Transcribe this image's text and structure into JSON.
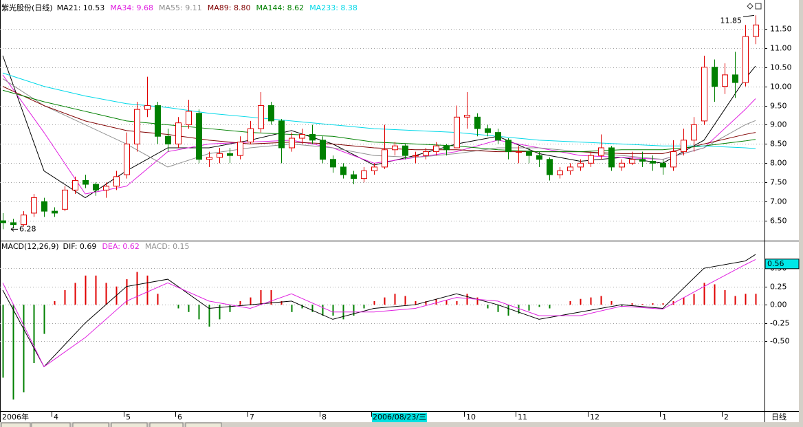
{
  "chart_data": [
    {
      "type": "candlestick",
      "title": "紫光股份(日线)",
      "categories": [
        "2006年",
        null,
        null,
        null,
        null,
        "4",
        null,
        null,
        null,
        null,
        null,
        null,
        "5",
        null,
        null,
        null,
        null,
        "6",
        null,
        null,
        null,
        null,
        null,
        null,
        "7",
        null,
        null,
        null,
        null,
        null,
        null,
        "8",
        null,
        null,
        null,
        null,
        "2006/08/23/三",
        null,
        null,
        null,
        null,
        null,
        null,
        null,
        null,
        "10",
        null,
        null,
        null,
        null,
        "11",
        null,
        null,
        null,
        null,
        null,
        null,
        "12",
        null,
        null,
        null,
        null,
        null,
        null,
        "1",
        null,
        null,
        null,
        null,
        null,
        "2",
        null,
        null,
        null
      ],
      "highlight_index": 36,
      "open": [
        6.5,
        6.45,
        6.4,
        6.7,
        7.0,
        6.75,
        6.8,
        7.3,
        7.55,
        7.45,
        7.3,
        7.4,
        7.7,
        8.5,
        9.4,
        9.5,
        8.7,
        8.5,
        9.0,
        9.3,
        8.1,
        8.15,
        8.25,
        8.2,
        8.55,
        8.9,
        9.5,
        9.1,
        8.4,
        8.65,
        8.75,
        8.6,
        8.1,
        7.9,
        7.7,
        7.6,
        7.8,
        7.9,
        8.35,
        8.45,
        8.2,
        8.2,
        8.3,
        8.45,
        8.4,
        9.2,
        9.2,
        8.9,
        8.8,
        8.6,
        8.3,
        8.3,
        8.2,
        8.1,
        7.7,
        7.8,
        7.9,
        8.0,
        8.2,
        8.4,
        7.9,
        8.0,
        8.1,
        8.05,
        8.0,
        7.9,
        8.3,
        8.6,
        9.1,
        10.5,
        10.0,
        10.3,
        10.1,
        11.3
      ],
      "high": [
        6.7,
        6.55,
        6.75,
        7.2,
        7.1,
        6.85,
        7.4,
        7.65,
        7.7,
        7.5,
        7.5,
        7.8,
        8.8,
        9.6,
        10.25,
        9.6,
        8.9,
        9.2,
        9.65,
        9.4,
        8.3,
        8.4,
        8.4,
        8.7,
        9.1,
        9.85,
        9.6,
        9.15,
        8.8,
        8.9,
        9.0,
        8.7,
        8.2,
        8.0,
        7.8,
        7.9,
        8.0,
        9.0,
        8.55,
        8.5,
        8.3,
        8.4,
        8.55,
        8.5,
        9.5,
        9.85,
        9.3,
        9.0,
        8.9,
        8.65,
        8.45,
        8.4,
        8.3,
        8.15,
        7.9,
        8.0,
        8.1,
        8.3,
        8.75,
        8.45,
        8.1,
        8.3,
        8.3,
        8.2,
        8.1,
        8.6,
        8.9,
        9.2,
        10.8,
        10.7,
        10.6,
        10.9,
        11.6,
        11.85
      ],
      "low": [
        6.28,
        6.3,
        6.35,
        6.6,
        6.6,
        6.6,
        6.75,
        7.2,
        7.35,
        7.15,
        7.1,
        7.3,
        7.6,
        8.3,
        9.2,
        8.5,
        8.3,
        8.4,
        8.9,
        8.0,
        7.9,
        8.0,
        8.0,
        8.1,
        8.5,
        8.8,
        9.0,
        8.0,
        8.3,
        8.5,
        8.5,
        8.0,
        7.75,
        7.6,
        7.45,
        7.5,
        7.7,
        7.85,
        8.2,
        8.1,
        8.0,
        8.1,
        8.2,
        8.2,
        8.4,
        8.9,
        8.7,
        8.7,
        8.5,
        8.1,
        8.0,
        8.0,
        7.9,
        7.55,
        7.6,
        7.7,
        7.8,
        7.9,
        8.1,
        7.8,
        7.8,
        7.95,
        7.9,
        7.8,
        7.7,
        7.8,
        8.2,
        8.3,
        9.0,
        9.6,
        9.8,
        9.7,
        10.0,
        11.1
      ],
      "close": [
        6.45,
        6.4,
        6.65,
        7.1,
        6.75,
        6.7,
        7.3,
        7.55,
        7.45,
        7.3,
        7.4,
        7.65,
        8.5,
        9.4,
        9.5,
        8.7,
        8.5,
        9.05,
        9.35,
        8.1,
        8.15,
        8.25,
        8.2,
        8.55,
        8.9,
        9.5,
        9.1,
        8.4,
        8.65,
        8.75,
        8.6,
        8.1,
        7.9,
        7.7,
        7.6,
        7.8,
        7.9,
        8.35,
        8.45,
        8.2,
        8.2,
        8.3,
        8.45,
        8.35,
        9.2,
        9.25,
        8.9,
        8.8,
        8.6,
        8.3,
        8.3,
        8.2,
        8.1,
        7.7,
        7.8,
        7.9,
        8.0,
        8.2,
        8.4,
        7.9,
        8.0,
        8.1,
        8.05,
        8.0,
        7.9,
        8.3,
        8.6,
        9.0,
        10.5,
        10.0,
        10.3,
        10.1,
        11.3,
        11.6
      ],
      "up_color": "#e00000",
      "down_color": "#008000",
      "series": [
        {
          "name": "MA21: 10.53",
          "color": "#000000",
          "x": [
            0,
            4,
            8,
            12,
            16,
            20,
            24,
            28,
            32,
            36,
            40,
            44,
            48,
            52,
            56,
            60,
            64,
            68,
            72,
            73
          ],
          "values": [
            10.8,
            7.8,
            7.1,
            7.8,
            8.4,
            8.4,
            8.6,
            8.85,
            8.5,
            7.95,
            8.2,
            8.5,
            8.7,
            8.25,
            8.05,
            8.15,
            8.0,
            8.6,
            10.2,
            10.53
          ]
        },
        {
          "name": "MA34: 9.68",
          "color": "#e020e0",
          "x": [
            0,
            4,
            8,
            12,
            16,
            20,
            24,
            28,
            32,
            36,
            40,
            44,
            48,
            52,
            56,
            60,
            64,
            68,
            72,
            73
          ],
          "values": [
            10.3,
            8.8,
            7.2,
            7.4,
            8.3,
            8.5,
            8.55,
            8.6,
            8.4,
            8.0,
            8.15,
            8.3,
            8.6,
            8.4,
            8.2,
            8.15,
            8.1,
            8.4,
            9.4,
            9.68
          ]
        },
        {
          "name": "MA55: 9.11",
          "color": "#909090",
          "x": [
            0,
            4,
            8,
            12,
            16,
            20,
            24,
            28,
            32,
            36,
            40,
            44,
            48,
            52,
            56,
            60,
            64,
            68,
            72,
            73
          ],
          "values": [
            10.2,
            9.5,
            9.0,
            8.5,
            7.9,
            8.25,
            8.4,
            8.5,
            8.4,
            8.2,
            8.15,
            8.25,
            8.4,
            8.4,
            8.3,
            8.2,
            8.1,
            8.4,
            9.0,
            9.11
          ]
        },
        {
          "name": "MA89: 8.80",
          "color": "#800000",
          "x": [
            0,
            4,
            8,
            12,
            16,
            20,
            24,
            28,
            32,
            36,
            40,
            44,
            48,
            52,
            56,
            60,
            64,
            68,
            72,
            73
          ],
          "values": [
            10.0,
            9.5,
            9.1,
            8.85,
            8.75,
            8.6,
            8.5,
            8.55,
            8.5,
            8.4,
            8.35,
            8.35,
            8.3,
            8.3,
            8.3,
            8.25,
            8.25,
            8.5,
            8.75,
            8.8
          ]
        },
        {
          "name": "MA144: 8.62",
          "color": "#008000",
          "x": [
            0,
            4,
            8,
            12,
            16,
            20,
            24,
            28,
            32,
            36,
            40,
            44,
            48,
            52,
            56,
            60,
            64,
            68,
            72,
            73
          ],
          "values": [
            9.9,
            9.6,
            9.35,
            9.1,
            9.0,
            8.9,
            8.8,
            8.75,
            8.7,
            8.55,
            8.5,
            8.45,
            8.35,
            8.3,
            8.3,
            8.35,
            8.35,
            8.45,
            8.58,
            8.62
          ]
        },
        {
          "name": "MA233: 8.38",
          "color": "#00d8e8",
          "x": [
            0,
            4,
            8,
            12,
            16,
            20,
            24,
            28,
            32,
            36,
            40,
            44,
            48,
            52,
            56,
            60,
            64,
            68,
            72,
            73
          ],
          "values": [
            10.35,
            10.0,
            9.75,
            9.55,
            9.45,
            9.3,
            9.2,
            9.1,
            9.0,
            8.9,
            8.85,
            8.8,
            8.7,
            8.6,
            8.55,
            8.5,
            8.45,
            8.45,
            8.4,
            8.38
          ]
        }
      ],
      "ylim": [
        6.0,
        12.25
      ],
      "yticks": [
        {
          "value": 6.5,
          "label": "6.50"
        },
        {
          "value": 7.0,
          "label": "7.00"
        },
        {
          "value": 7.5,
          "label": "7.50"
        },
        {
          "value": 8.0,
          "label": "8.00"
        },
        {
          "value": 8.5,
          "label": "8.50"
        },
        {
          "value": 9.0,
          "label": "9.00"
        },
        {
          "value": 9.5,
          "label": "9.50"
        },
        {
          "value": 10.0,
          "label": "10.00"
        },
        {
          "value": 10.5,
          "label": "10.50"
        },
        {
          "value": 11.0,
          "label": "11.00"
        },
        {
          "value": 11.5,
          "label": "11.50"
        }
      ],
      "grid": true,
      "high_label": 11.85,
      "low_label": 6.28,
      "period_label": "日线"
    },
    {
      "type": "macd",
      "title": "MACD(12,26,9)",
      "histogram": {
        "name": "MACD: 0.15",
        "name_color": "#909090",
        "up_color": "#e00000",
        "down_color": "#008000",
        "values": [
          -1.0,
          -1.3,
          -1.2,
          -0.8,
          -0.4,
          0.05,
          0.2,
          0.3,
          0.4,
          0.4,
          0.3,
          0.25,
          0.35,
          0.45,
          0.4,
          0.15,
          0.0,
          -0.05,
          -0.1,
          -0.2,
          -0.3,
          -0.2,
          -0.1,
          0.05,
          0.1,
          0.2,
          0.2,
          0.05,
          -0.1,
          -0.05,
          -0.1,
          -0.15,
          -0.15,
          -0.2,
          -0.15,
          -0.05,
          0.05,
          0.1,
          0.15,
          0.12,
          0.05,
          0.05,
          0.08,
          0.06,
          0.05,
          0.15,
          0.1,
          -0.05,
          -0.1,
          -0.15,
          -0.12,
          -0.08,
          -0.03,
          -0.05,
          0.0,
          0.05,
          0.08,
          0.1,
          0.12,
          0.05,
          -0.03,
          0.02,
          0.01,
          0.02,
          0.02,
          0.05,
          0.1,
          0.15,
          0.3,
          0.28,
          0.2,
          0.12,
          0.15,
          0.15
        ]
      },
      "series": [
        {
          "name": "DIF: 0.69",
          "color": "#000000",
          "x": [
            0,
            4,
            8,
            12,
            16,
            20,
            24,
            28,
            32,
            36,
            40,
            44,
            48,
            52,
            56,
            60,
            64,
            68,
            72,
            73
          ],
          "values": [
            0.2,
            -0.85,
            -0.25,
            0.25,
            0.35,
            -0.05,
            0.0,
            0.05,
            -0.2,
            -0.05,
            0.0,
            0.15,
            0.0,
            -0.2,
            -0.1,
            0.0,
            -0.05,
            0.5,
            0.6,
            0.69
          ]
        },
        {
          "name": "DEA: 0.62",
          "color": "#e020e0",
          "x": [
            0,
            4,
            8,
            12,
            16,
            20,
            24,
            28,
            32,
            36,
            40,
            44,
            48,
            52,
            56,
            60,
            64,
            68,
            72,
            73
          ],
          "values": [
            0.3,
            -0.85,
            -0.45,
            0.05,
            0.3,
            0.05,
            -0.05,
            0.15,
            -0.1,
            -0.1,
            -0.05,
            0.1,
            0.05,
            -0.15,
            -0.15,
            -0.02,
            -0.06,
            0.25,
            0.55,
            0.62
          ]
        }
      ],
      "ylim": [
        -1.46,
        0.86
      ],
      "yticks": [
        {
          "value": -0.5,
          "label": "-0.50"
        },
        {
          "value": -0.25,
          "label": "-0.25"
        },
        {
          "value": 0,
          "label": "0.00"
        },
        {
          "value": 0.25,
          "label": "0.25"
        },
        {
          "value": 0.5,
          "label": "0.50"
        }
      ],
      "grid": true,
      "cursor_value": {
        "value": 0.56,
        "label": "0.56"
      }
    }
  ]
}
